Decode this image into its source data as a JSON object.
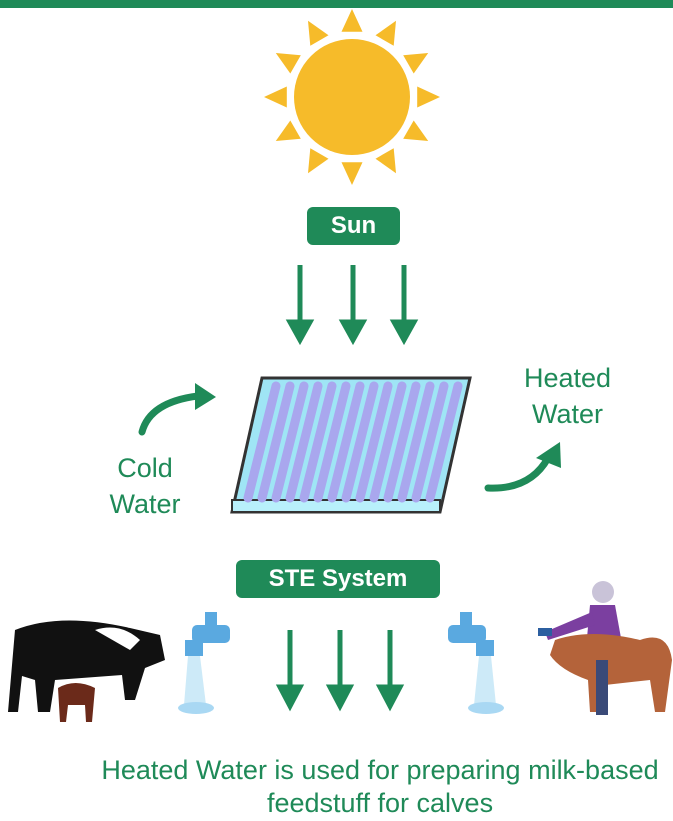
{
  "sun_label": "Sun",
  "cold_water_label": "Cold Water",
  "heated_water_label": "Heated Water",
  "system_label": "STE System",
  "caption": "Heated Water is used for preparing milk-based feedstuff for calves"
}
